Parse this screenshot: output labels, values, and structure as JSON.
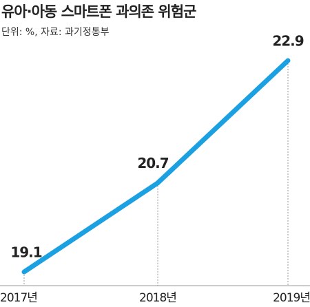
{
  "chart_data": {
    "type": "line",
    "title": "유아·아동 스마트폰 과의존 위험군",
    "subtitle": "단위: %, 자료: 과기정통부",
    "categories": [
      "2017년",
      "2018년",
      "2019년"
    ],
    "series": [
      {
        "name": "유아·아동 스마트폰 과의존 위험군",
        "color": "#1ba1e2",
        "values": [
          19.1,
          20.7,
          22.9
        ]
      }
    ]
  }
}
